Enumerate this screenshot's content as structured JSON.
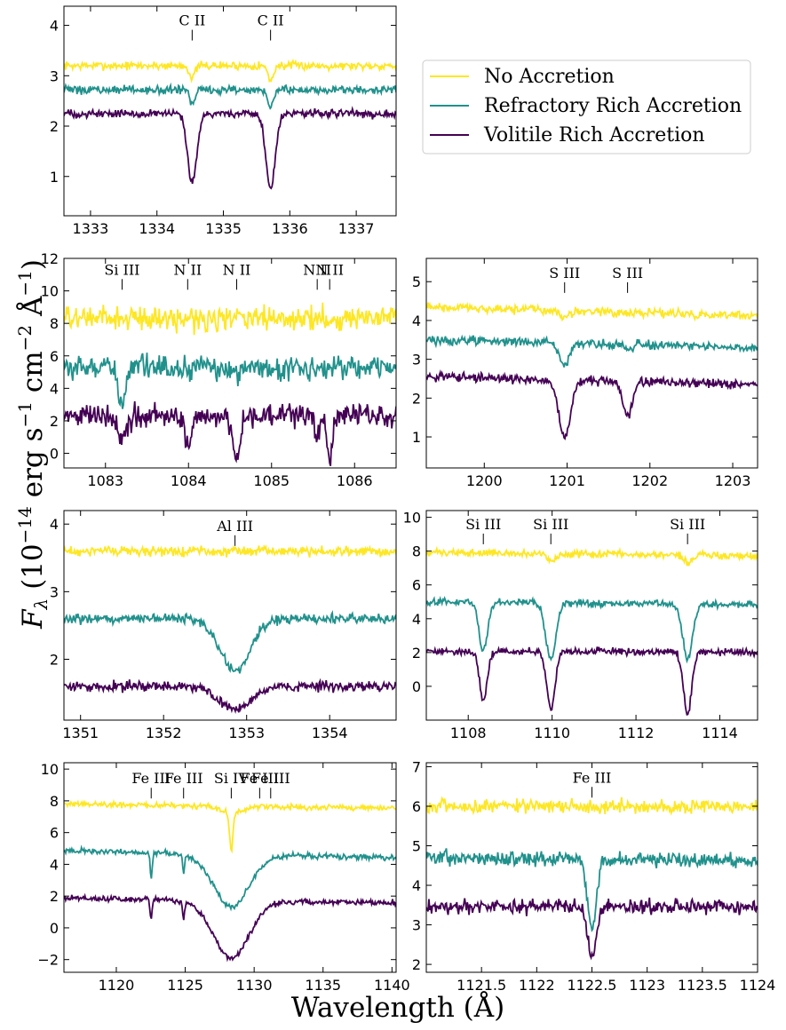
{
  "figure": {
    "xlabel": "Wavelength (Å)",
    "ylabel_main": "F",
    "ylabel_sub": "λ",
    "ylabel_rest": " (10",
    "ylabel_exp1": "−14",
    "ylabel_mid": " erg s",
    "ylabel_exp2": "−1",
    "ylabel_mid2": " cm",
    "ylabel_exp3": "−2",
    "ylabel_mid3": " Å",
    "ylabel_exp4": "−1",
    "ylabel_end": ")"
  },
  "legend": {
    "entries": [
      {
        "label": "No Accretion",
        "color": "#fde725"
      },
      {
        "label": "Refractory Rich Accretion",
        "color": "#21918c"
      },
      {
        "label": "Volitile Rich Accretion",
        "color": "#440154"
      }
    ],
    "placement": "top-right"
  },
  "chart_data": [
    {
      "type": "line",
      "panel": "C II",
      "xlim": [
        1332.6,
        1337.6
      ],
      "ylim": [
        0.22,
        4.38
      ],
      "xticks": [
        1333,
        1334,
        1335,
        1336,
        1337
      ],
      "yticks": [
        1,
        2,
        3,
        4
      ],
      "noise": 0.05,
      "series": [
        {
          "name": "No Accretion",
          "color": "#fde725",
          "base": 3.2,
          "slope": 0,
          "lines": [
            [
              1334.53,
              0.25,
              0.04
            ],
            [
              1335.71,
              0.3,
              0.04
            ]
          ]
        },
        {
          "name": "Refractory Rich Accretion",
          "color": "#21918c",
          "base": 2.72,
          "slope": 0,
          "lines": [
            [
              1334.53,
              0.3,
              0.04
            ],
            [
              1335.71,
              0.35,
              0.04
            ]
          ]
        },
        {
          "name": "Volitile Rich Accretion",
          "color": "#440154",
          "base": 2.25,
          "slope": 0,
          "lines": [
            [
              1334.53,
              1.4,
              0.07
            ],
            [
              1335.71,
              1.5,
              0.07
            ]
          ]
        }
      ],
      "ions": [
        {
          "label": "C II",
          "x": 1334.53
        },
        {
          "label": "C II",
          "x": 1335.71
        }
      ],
      "ion_y": 4.0
    },
    {
      "type": "line",
      "panel": "Si III / N II",
      "xlim": [
        1082.5,
        1086.5
      ],
      "ylim": [
        -0.9,
        12.0
      ],
      "xticks": [
        1083,
        1084,
        1085,
        1086
      ],
      "yticks": [
        0,
        2,
        4,
        6,
        8,
        10,
        12
      ],
      "noise": 0.45,
      "series": [
        {
          "name": "No Accretion",
          "color": "#fde725",
          "base": 8.3,
          "slope": 0,
          "lines": []
        },
        {
          "name": "Refractory Rich Accretion",
          "color": "#21918c",
          "base": 5.3,
          "slope": 0,
          "lines": [
            [
              1083.2,
              2.1,
              0.05
            ],
            [
              1084.0,
              0.4,
              0.03
            ],
            [
              1084.58,
              0.6,
              0.03
            ]
          ]
        },
        {
          "name": "Volitile Rich Accretion",
          "color": "#440154",
          "base": 2.3,
          "slope": 0,
          "lines": [
            [
              1083.2,
              1.6,
              0.05
            ],
            [
              1083.99,
              1.8,
              0.04
            ],
            [
              1084.58,
              2.7,
              0.04
            ],
            [
              1085.55,
              1.2,
              0.03
            ],
            [
              1085.7,
              2.6,
              0.03
            ]
          ]
        }
      ],
      "ions": [
        {
          "label": "Si III",
          "x": 1083.2
        },
        {
          "label": "N II",
          "x": 1083.99
        },
        {
          "label": "N II",
          "x": 1084.58
        },
        {
          "label": "N II",
          "x": 1085.55
        },
        {
          "label": "N II",
          "x": 1085.7
        }
      ],
      "ion_y": 11.0
    },
    {
      "type": "line",
      "panel": "S III",
      "xlim": [
        1199.3,
        1203.3
      ],
      "ylim": [
        0.2,
        5.6
      ],
      "xticks": [
        1200,
        1201,
        1202,
        1203
      ],
      "yticks": [
        1,
        2,
        3,
        4,
        5
      ],
      "noise": 0.07,
      "series": [
        {
          "name": "No Accretion",
          "color": "#fde725",
          "base": 4.35,
          "slope": -0.06,
          "lines": [
            [
              1200.97,
              0.2,
              0.05
            ]
          ]
        },
        {
          "name": "Refractory Rich Accretion",
          "color": "#21918c",
          "base": 3.5,
          "slope": -0.05,
          "lines": [
            [
              1200.97,
              0.6,
              0.06
            ],
            [
              1201.73,
              0.1,
              0.04
            ]
          ]
        },
        {
          "name": "Volitile Rich Accretion",
          "color": "#440154",
          "base": 2.55,
          "slope": -0.05,
          "lines": [
            [
              1200.97,
              1.5,
              0.07
            ],
            [
              1201.73,
              0.9,
              0.06
            ]
          ]
        }
      ],
      "ions": [
        {
          "label": "S III",
          "x": 1200.97
        },
        {
          "label": "S III",
          "x": 1201.73
        }
      ],
      "ion_y": 5.1
    },
    {
      "type": "line",
      "panel": "Al III",
      "xlim": [
        1350.8,
        1354.8
      ],
      "ylim": [
        1.1,
        4.2
      ],
      "xticks": [
        1351,
        1352,
        1353,
        1354
      ],
      "yticks": [
        2,
        3,
        4
      ],
      "noise": 0.045,
      "series": [
        {
          "name": "No Accretion",
          "color": "#fde725",
          "base": 3.6,
          "slope": 0,
          "lines": []
        },
        {
          "name": "Refractory Rich Accretion",
          "color": "#21918c",
          "base": 2.6,
          "slope": 0,
          "lines": [
            [
              1352.86,
              0.78,
              0.18
            ]
          ]
        },
        {
          "name": "Volitile Rich Accretion",
          "color": "#440154",
          "base": 1.6,
          "slope": 0,
          "lines": [
            [
              1352.86,
              0.33,
              0.2
            ]
          ]
        }
      ],
      "ions": [
        {
          "label": "Al III",
          "x": 1352.86
        }
      ],
      "ion_y": 3.9
    },
    {
      "type": "line",
      "panel": "Si III triplet",
      "xlim": [
        1107.0,
        1114.9
      ],
      "ylim": [
        -2.0,
        10.4
      ],
      "xticks": [
        1108,
        1110,
        1112,
        1114
      ],
      "yticks": [
        0,
        2,
        4,
        6,
        8,
        10
      ],
      "noise": 0.13,
      "series": [
        {
          "name": "No Accretion",
          "color": "#fde725",
          "base": 7.9,
          "slope": -0.02,
          "lines": [
            [
              1109.97,
              0.4,
              0.1
            ],
            [
              1113.23,
              0.4,
              0.1
            ]
          ]
        },
        {
          "name": "Refractory Rich Accretion",
          "color": "#21918c",
          "base": 5.0,
          "slope": -0.02,
          "lines": [
            [
              1108.36,
              2.9,
              0.1
            ],
            [
              1109.97,
              3.3,
              0.12
            ],
            [
              1113.23,
              3.2,
              0.12
            ]
          ]
        },
        {
          "name": "Volitile Rich Accretion",
          "color": "#440154",
          "base": 2.1,
          "slope": -0.01,
          "lines": [
            [
              1108.36,
              3.0,
              0.09
            ],
            [
              1109.97,
              3.4,
              0.1
            ],
            [
              1113.23,
              3.6,
              0.1
            ]
          ]
        }
      ],
      "ions": [
        {
          "label": "Si III",
          "x": 1108.36
        },
        {
          "label": "Si III",
          "x": 1109.97
        },
        {
          "label": "Si III",
          "x": 1113.23
        }
      ],
      "ion_y": 9.3
    },
    {
      "type": "line",
      "panel": "Fe III / Si IV",
      "xlim": [
        1116.2,
        1140.3
      ],
      "ylim": [
        -2.8,
        10.4
      ],
      "xticks": [
        1120,
        1125,
        1130,
        1135,
        1140
      ],
      "yticks": [
        -2,
        0,
        2,
        4,
        6,
        8,
        10
      ],
      "noise": 0.11,
      "series": [
        {
          "name": "No Accretion",
          "color": "#fde725",
          "base": 7.8,
          "slope": -0.012,
          "lines": [
            [
              1128.34,
              2.4,
              0.12
            ],
            [
              1128.34,
              0.4,
              0.8
            ]
          ]
        },
        {
          "name": "Refractory Rich Accretion",
          "color": "#21918c",
          "base": 4.85,
          "slope": -0.018,
          "lines": [
            [
              1122.53,
              1.6,
              0.07
            ],
            [
              1124.88,
              1.2,
              0.07
            ],
            [
              1128.34,
              3.3,
              1.3
            ]
          ]
        },
        {
          "name": "Volitile Rich Accretion",
          "color": "#440154",
          "base": 1.85,
          "slope": -0.012,
          "lines": [
            [
              1122.53,
              1.3,
              0.07
            ],
            [
              1124.88,
              1.1,
              0.07
            ],
            [
              1128.34,
              3.6,
              1.3
            ]
          ]
        }
      ],
      "ions": [
        {
          "label": "Fe III",
          "x": 1122.53
        },
        {
          "label": "Fe III",
          "x": 1124.88
        },
        {
          "label": "Si IV",
          "x": 1128.34
        },
        {
          "label": "Fe III",
          "x": 1130.4
        },
        {
          "label": "Fe III",
          "x": 1131.2
        }
      ],
      "ion_y": 9.1
    },
    {
      "type": "line",
      "panel": "Fe III",
      "xlim": [
        1121.0,
        1124.0
      ],
      "ylim": [
        1.8,
        7.1
      ],
      "xticks": [
        1121.5,
        1122.0,
        1122.5,
        1123.0,
        1123.5,
        1124.0
      ],
      "yticks": [
        2,
        3,
        4,
        5,
        6,
        7
      ],
      "noise": 0.11,
      "series": [
        {
          "name": "No Accretion",
          "color": "#fde725",
          "base": 6.0,
          "slope": 0,
          "lines": []
        },
        {
          "name": "Refractory Rich Accretion",
          "color": "#21918c",
          "base": 4.7,
          "slope": -0.03,
          "lines": [
            [
              1122.5,
              1.75,
              0.04
            ]
          ]
        },
        {
          "name": "Volitile Rich Accretion",
          "color": "#440154",
          "base": 3.45,
          "slope": 0,
          "lines": [
            [
              1122.5,
              1.2,
              0.04
            ]
          ]
        }
      ],
      "ions": [
        {
          "label": "Fe III",
          "x": 1122.5
        }
      ],
      "ion_y": 6.6
    }
  ]
}
